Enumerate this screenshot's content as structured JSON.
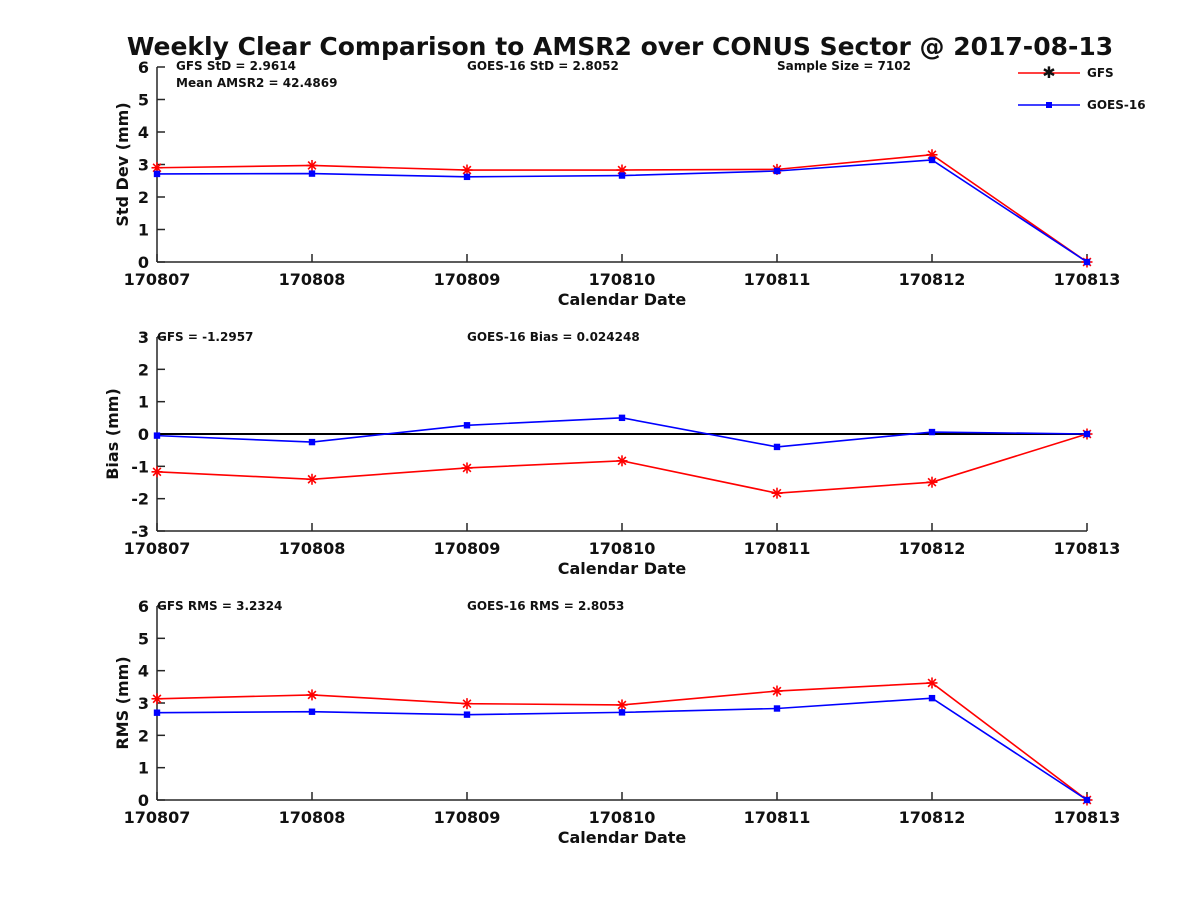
{
  "colors": {
    "GFS": "#ff0000",
    "GOES-16": "#0000ff",
    "axis": "#262626",
    "zero": "#000000"
  },
  "figure_title": "Weekly Clear Comparison to AMSR2 over CONUS Sector @ 2017-08-13",
  "legend": {
    "placement": "top-right",
    "items": [
      "GFS",
      "GOES-16"
    ]
  },
  "chart_data": [
    {
      "type": "line",
      "title": "Weekly Clear Comparison to AMSR2 over CONUS Sector @ 2017-08-13",
      "xlabel": "Calendar Date",
      "ylabel": "Std Dev (mm)",
      "categories": [
        "170807",
        "170808",
        "170809",
        "170810",
        "170811",
        "170812",
        "170813"
      ],
      "ylim": [
        0,
        6
      ],
      "yticks": [
        "0",
        "1",
        "2",
        "3",
        "4",
        "5",
        "6"
      ],
      "zero_line": false,
      "series": [
        {
          "name": "GFS",
          "values": [
            2.9,
            2.97,
            2.83,
            2.83,
            2.85,
            3.3,
            0.0
          ]
        },
        {
          "name": "GOES-16",
          "values": [
            2.71,
            2.72,
            2.62,
            2.66,
            2.8,
            3.14,
            0.0
          ]
        }
      ],
      "annotations": [
        "GFS StD = 2.9614",
        "Mean AMSR2 = 42.4869",
        "GOES-16 StD = 2.8052",
        "Sample Size = 7102"
      ]
    },
    {
      "type": "line",
      "xlabel": "Calendar Date",
      "ylabel": "Bias (mm)",
      "categories": [
        "170807",
        "170808",
        "170809",
        "170810",
        "170811",
        "170812",
        "170813"
      ],
      "ylim": [
        -3,
        3
      ],
      "yticks": [
        "-3",
        "-2",
        "-1",
        "0",
        "1",
        "2",
        "3"
      ],
      "zero_line": true,
      "series": [
        {
          "name": "GFS",
          "values": [
            -1.17,
            -1.4,
            -1.05,
            -0.83,
            -1.83,
            -1.49,
            0.0
          ]
        },
        {
          "name": "GOES-16",
          "values": [
            -0.05,
            -0.25,
            0.27,
            0.5,
            -0.4,
            0.06,
            0.0
          ]
        }
      ],
      "annotations": [
        "GFS = -1.2957",
        "GOES-16 Bias  = 0.024248"
      ]
    },
    {
      "type": "line",
      "xlabel": "Calendar Date",
      "ylabel": "RMS (mm)",
      "categories": [
        "170807",
        "170808",
        "170809",
        "170810",
        "170811",
        "170812",
        "170813"
      ],
      "ylim": [
        0,
        6
      ],
      "yticks": [
        "0",
        "1",
        "2",
        "3",
        "4",
        "5",
        "6"
      ],
      "zero_line": false,
      "series": [
        {
          "name": "GFS",
          "values": [
            3.13,
            3.25,
            2.98,
            2.94,
            3.37,
            3.62,
            0.0
          ]
        },
        {
          "name": "GOES-16",
          "values": [
            2.7,
            2.73,
            2.64,
            2.71,
            2.83,
            3.15,
            0.0
          ]
        }
      ],
      "annotations": [
        "GFS RMS = 3.2324",
        "GOES-16 RMS = 2.8053"
      ]
    }
  ]
}
